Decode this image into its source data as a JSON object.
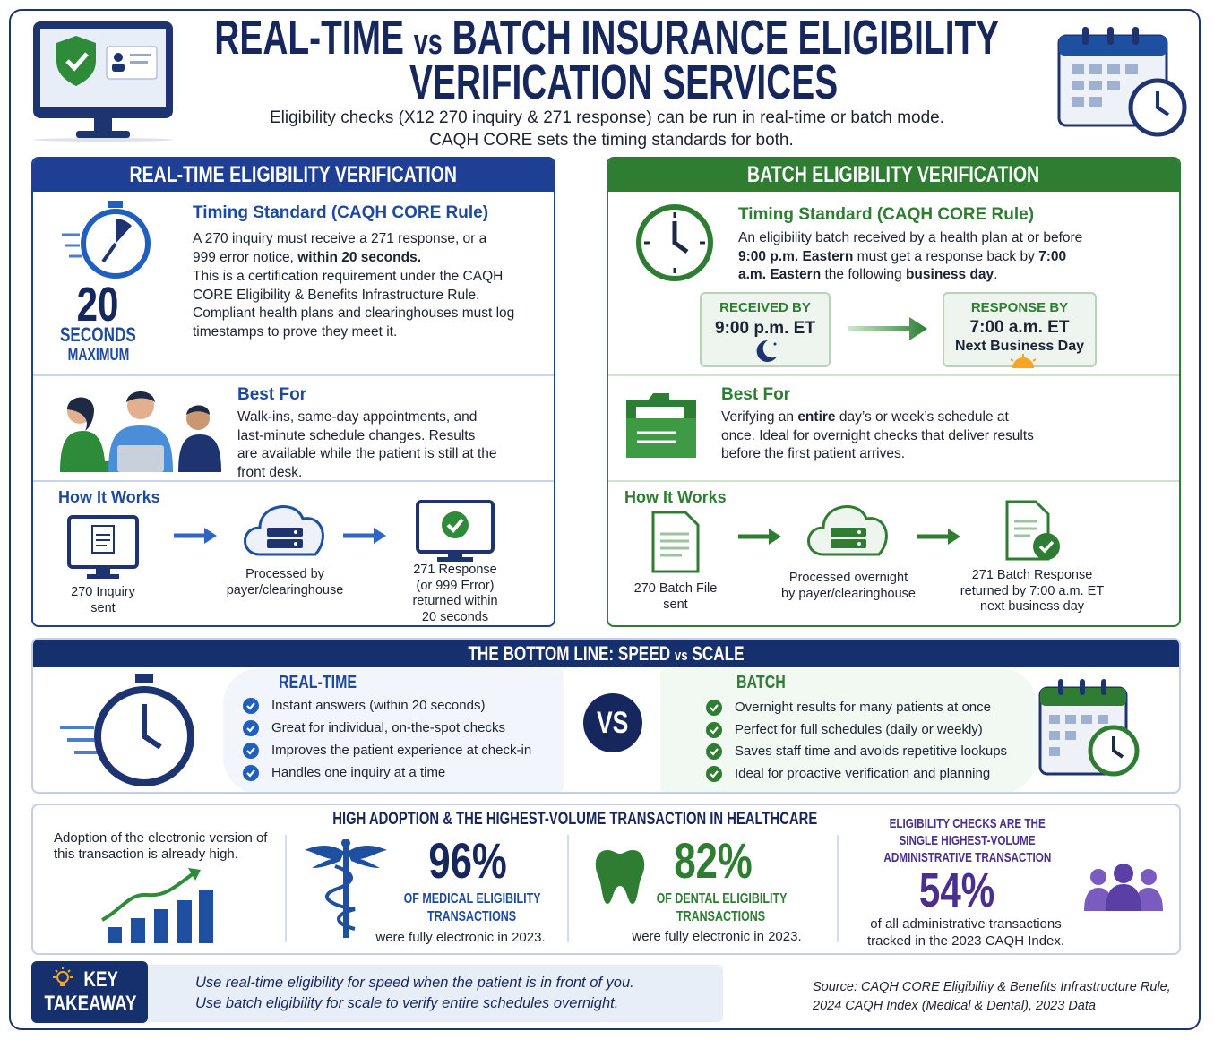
{
  "header": {
    "title": {
      "line1": [
        "REAL-TIME ",
        "vs",
        " BATCH INSURANCE ELIGIBILITY"
      ],
      "line2": "VERIFICATION SERVICES"
    },
    "subtitle": [
      "Eligibility checks (X12 270 inquiry & 271 response) can be run in real-time or batch mode.",
      "CAQH CORE sets the timing standards for both."
    ]
  },
  "realtime": {
    "heading": "REAL-TIME ELIGIBILITY VERIFICATION",
    "timing": {
      "title": "Timing Standard (CAQH CORE Rule)",
      "big": "20",
      "unit": [
        "SECONDS",
        "MAXIMUM"
      ],
      "paragraph1": [
        "A 270 inquiry must receive a 271 response, or a 999 error notice, ",
        "within 20 seconds."
      ],
      "paragraph2": "This is a certification requirement under the CAQH CORE Eligibility & Benefits Infrastructure Rule. Compliant health plans and clearinghouses must log timestamps to prove they meet it."
    },
    "best_for": {
      "title": "Best For",
      "text": "Walk-ins, same-day appointments, and last-minute schedule changes. Results are available while the patient is still at the front desk."
    },
    "how_it_works": {
      "title": "How It Works",
      "steps": [
        [
          "270 Inquiry",
          "sent"
        ],
        [
          "Processed by",
          "payer/clearinghouse"
        ],
        [
          "271 Response",
          "(or 999 Error)",
          "returned within",
          "20 seconds"
        ]
      ]
    }
  },
  "batch": {
    "heading": "BATCH ELIGIBILITY VERIFICATION",
    "timing": {
      "title": "Timing Standard (CAQH CORE Rule)",
      "text": [
        "An eligibility batch received by a health plan at or before ",
        "9:00 p.m. Eastern",
        " must get a response back by ",
        "7:00 a.m. Eastern",
        " the following ",
        "business day",
        "."
      ],
      "received": {
        "label": "RECEIVED BY",
        "time": "9:00 p.m. ET"
      },
      "response": {
        "label": "RESPONSE BY",
        "time": "7:00 a.m. ET",
        "note": "Next Business Day"
      }
    },
    "best_for": {
      "title": "Best For",
      "text": [
        "Verifying an ",
        "entire",
        " day’s or week’s schedule at once. Ideal for overnight checks that deliver results before the first patient arrives."
      ]
    },
    "how_it_works": {
      "title": "How It Works",
      "steps": [
        [
          "270 Batch File",
          "sent"
        ],
        [
          "Processed overnight",
          "by payer/clearinghouse"
        ],
        [
          "271 Batch Response",
          "returned by 7:00 a.m. ET",
          "next business day"
        ]
      ]
    }
  },
  "bottom_line": {
    "heading": [
      "THE BOTTOM LINE: SPEED ",
      "vs",
      " SCALE"
    ],
    "realtime": {
      "title": "REAL-TIME",
      "items": [
        "Instant answers (within 20 seconds)",
        "Great for individual, on-the-spot checks",
        "Improves the patient experience at check-in",
        "Handles one inquiry at a time"
      ]
    },
    "vs": "VS",
    "batch": {
      "title": "BATCH",
      "items": [
        "Overnight results for many patients at once",
        "Perfect for full schedules (daily or weekly)",
        "Saves staff time and avoids repetitive lookups",
        "Ideal for proactive verification and planning"
      ]
    }
  },
  "adoption": {
    "heading": "HIGH ADOPTION & THE HIGHEST-VOLUME TRANSACTION IN HEALTHCARE",
    "intro": "Adoption of the electronic version of this transaction is already high.",
    "stats": [
      {
        "value": "96%",
        "label": [
          "OF MEDICAL ELIGIBILITY",
          "TRANSACTIONS"
        ],
        "note": "were fully electronic in 2023."
      },
      {
        "value": "82%",
        "label": [
          "OF DENTAL ELIGIBILITY",
          "TRANSACTIONS"
        ],
        "note": "were fully electronic in 2023."
      }
    ],
    "highest": {
      "lines": [
        "ELIGIBILITY CHECKS ARE THE",
        "SINGLE HIGHEST-VOLUME",
        "ADMINISTRATIVE TRANSACTION"
      ],
      "value": "54%",
      "note": [
        "of all administrative transactions",
        "tracked in the 2023 CAQH Index."
      ]
    }
  },
  "takeaway": {
    "label": [
      "KEY",
      "TAKEAWAY"
    ],
    "lines": [
      "Use real-time eligibility for speed when the patient is in front of you.",
      "Use batch eligibility for scale to verify entire schedules overnight."
    ]
  },
  "source": [
    "Source: CAQH CORE Eligibility & Benefits Infrastructure Rule,",
    "2024 CAQH Index (Medical & Dental), 2023 Data"
  ]
}
